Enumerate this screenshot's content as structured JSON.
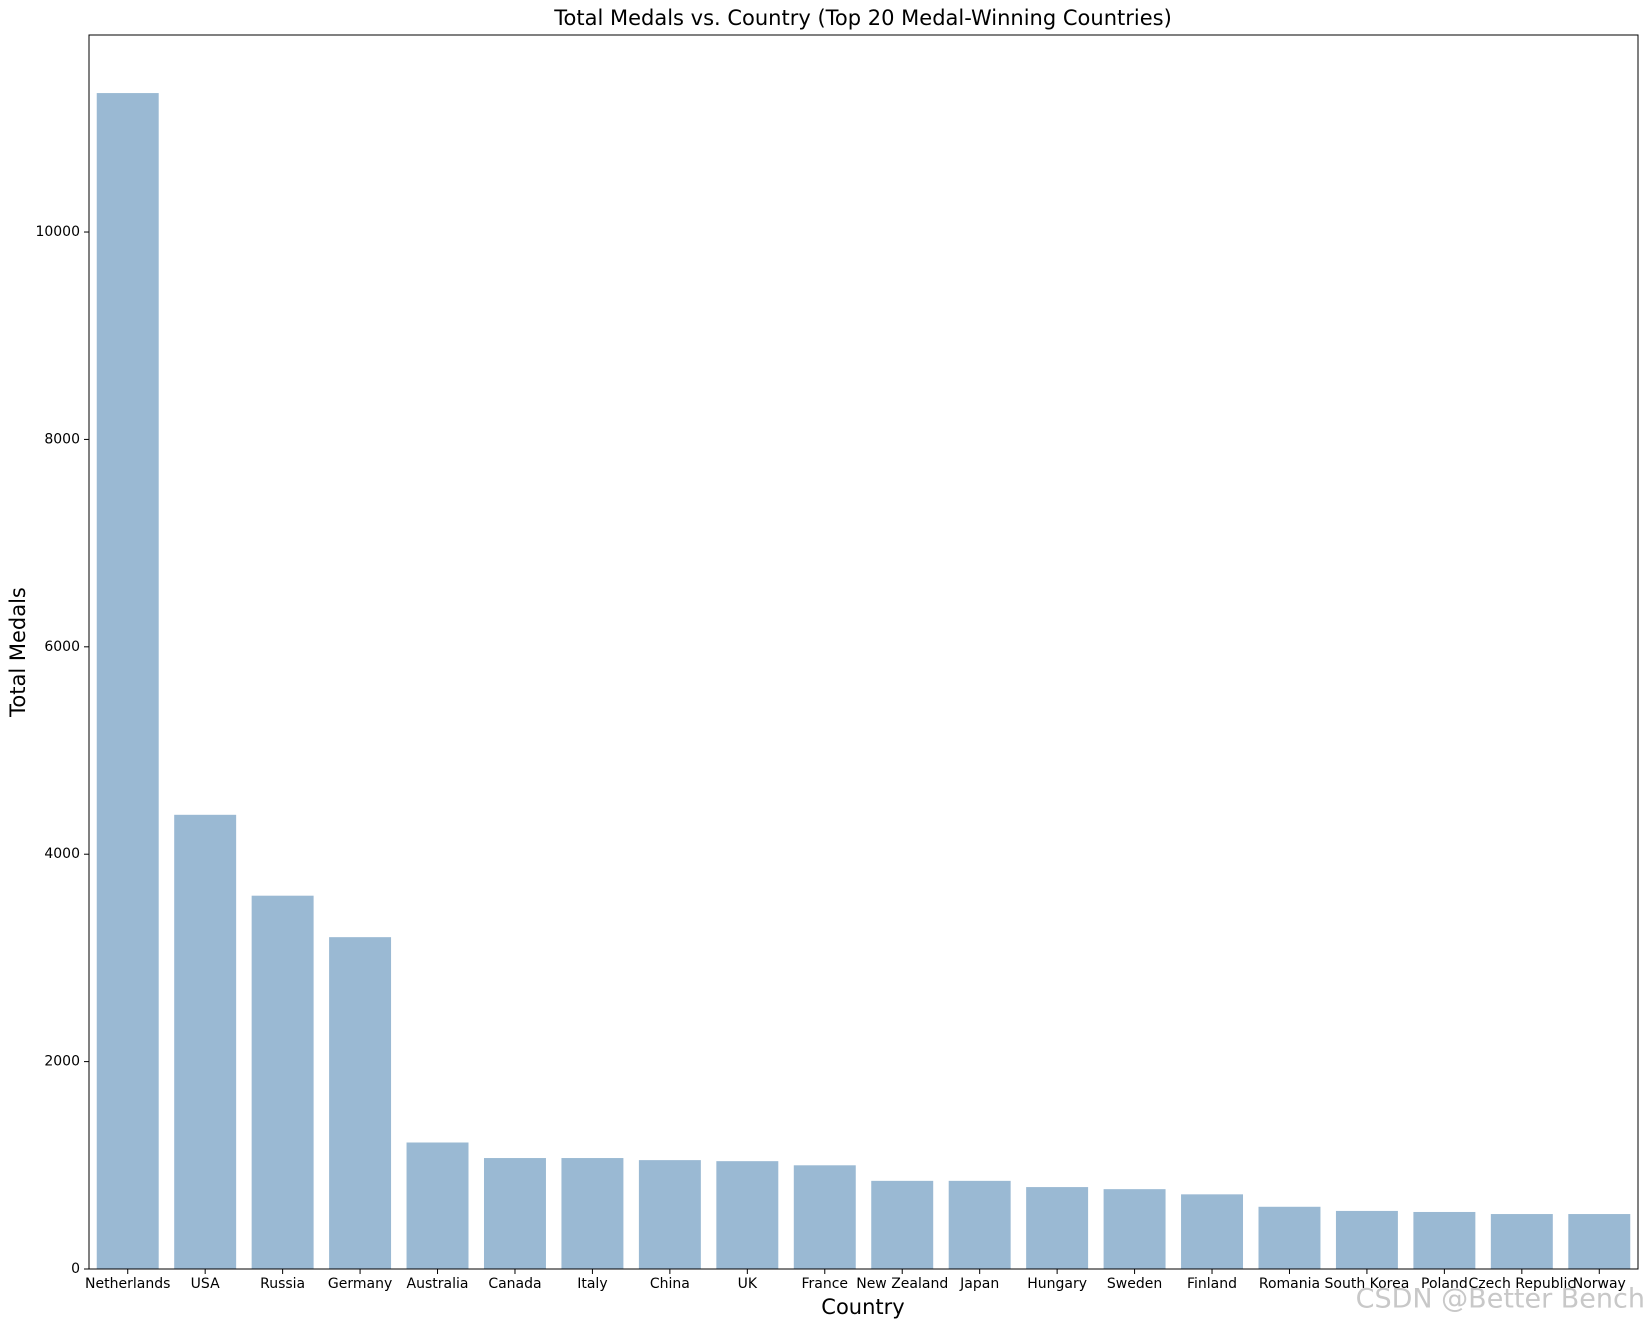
{
  "chart_data": {
    "type": "bar",
    "title": "Total Medals vs. Country (Top 20 Medal-Winning Countries)",
    "x_label": "Country",
    "y_label": "Total Medals",
    "categories": [
      "Netherlands",
      "USA",
      "Russia",
      "Germany",
      "Australia",
      "Canada",
      "Italy",
      "China",
      "UK",
      "France",
      "New Zealand",
      "Japan",
      "Hungary",
      "Sweden",
      "Finland",
      "Romania",
      "South Korea",
      "Poland",
      "Czech Republic",
      "Norway"
    ],
    "values": [
      11340,
      4380,
      3600,
      3200,
      1220,
      1070,
      1070,
      1050,
      1040,
      1000,
      850,
      850,
      790,
      770,
      720,
      600,
      560,
      550,
      530,
      530
    ],
    "color": "#9ab9d3",
    "ylim": [
      0,
      11900
    ],
    "yticks": [
      0,
      2000,
      4000,
      6000,
      8000,
      10000
    ],
    "grid": false,
    "watermark": "CSDN @Better Bench"
  }
}
